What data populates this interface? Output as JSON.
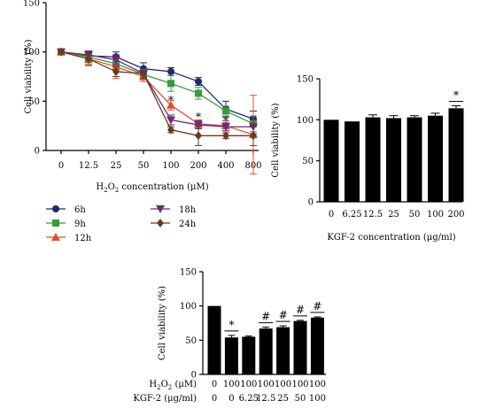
{
  "chart_data": [
    {
      "type": "line",
      "panel": "top-left",
      "xlabel": "H2O2 concentration (μM)",
      "xlabel_parts": {
        "pre": "H",
        "sub1": "2",
        "mid": "O",
        "sub2": "2",
        "post": " concentration (μM)"
      },
      "ylabel": "Cell viability (%)",
      "ylim": [
        0,
        150
      ],
      "yticks": [
        "0",
        "50",
        "100",
        "150"
      ],
      "categories": [
        "0",
        "12.5",
        "25",
        "50",
        "100",
        "200",
        "400",
        "800"
      ],
      "series": [
        {
          "name": "6h",
          "color": "#1f2a6b",
          "marker": "circle",
          "values": [
            100,
            96,
            95,
            83,
            80,
            70,
            42,
            32
          ],
          "errors": [
            2,
            5,
            5,
            6,
            4,
            4,
            8,
            8
          ]
        },
        {
          "name": "9h",
          "color": "#3a9a3a",
          "marker": "square",
          "values": [
            100,
            95,
            88,
            77,
            68,
            58,
            40,
            27
          ],
          "errors": [
            2,
            6,
            6,
            5,
            8,
            6,
            5,
            8
          ]
        },
        {
          "name": "12h",
          "color": "#e0502a",
          "marker": "triangle-up",
          "values": [
            100,
            93,
            85,
            75,
            46,
            27,
            25,
            16
          ],
          "errors": [
            2,
            7,
            12,
            5,
            5,
            4,
            5,
            40
          ]
        },
        {
          "name": "18h",
          "color": "#6a2a7a",
          "marker": "triangle-down",
          "values": [
            100,
            97,
            92,
            78,
            31,
            26,
            24,
            24
          ],
          "errors": [
            2,
            4,
            5,
            5,
            5,
            4,
            4,
            7
          ]
        },
        {
          "name": "24h",
          "color": "#6b3a1e",
          "marker": "diamond",
          "values": [
            100,
            93,
            80,
            78,
            21,
            15,
            15,
            15
          ],
          "errors": [
            2,
            6,
            5,
            5,
            3,
            10,
            3,
            10
          ]
        }
      ],
      "annotations": [
        {
          "text": "*",
          "category": "100",
          "y": 52
        },
        {
          "text": "*",
          "category": "200",
          "y": 35
        },
        {
          "text": "*",
          "category": "400",
          "y": 31
        }
      ]
    },
    {
      "type": "bar",
      "panel": "top-right",
      "xlabel": "KGF-2 concentration (μg/ml)",
      "ylabel": "Cell viability (%)",
      "ylim": [
        0,
        150
      ],
      "yticks": [
        "0",
        "50",
        "100",
        "150"
      ],
      "categories": [
        "0",
        "6.25",
        "12.5",
        "25",
        "50",
        "100",
        "200"
      ],
      "values": [
        100,
        98,
        103,
        102,
        103,
        105,
        114
      ],
      "errors": [
        0,
        0,
        3,
        3,
        2,
        3,
        3
      ],
      "annotations": [
        {
          "text": "*",
          "category": "200"
        }
      ]
    },
    {
      "type": "bar",
      "panel": "bottom",
      "ylabel": "Cell viability (%)",
      "ylim": [
        0,
        150
      ],
      "yticks": [
        "0",
        "50",
        "100",
        "150"
      ],
      "values": [
        100,
        54,
        55,
        67,
        69,
        78,
        83
      ],
      "errors": [
        0,
        3,
        1,
        2,
        2,
        1,
        1
      ],
      "annotations": [
        "",
        "*",
        "",
        "#",
        "#",
        "#",
        "#"
      ],
      "rows": [
        {
          "label": "H2O2 (μM)",
          "label_parts": {
            "pre": "H",
            "sub1": "2",
            "mid": "O",
            "sub2": "2",
            "post": " (μM)"
          },
          "values": [
            "0",
            "100",
            "100",
            "100",
            "100",
            "100",
            "100"
          ]
        },
        {
          "label": "KGF-2 (μg/ml)",
          "values": [
            "0",
            "0",
            "6.25",
            "12.5",
            "25",
            "50",
            "100"
          ]
        }
      ]
    }
  ]
}
